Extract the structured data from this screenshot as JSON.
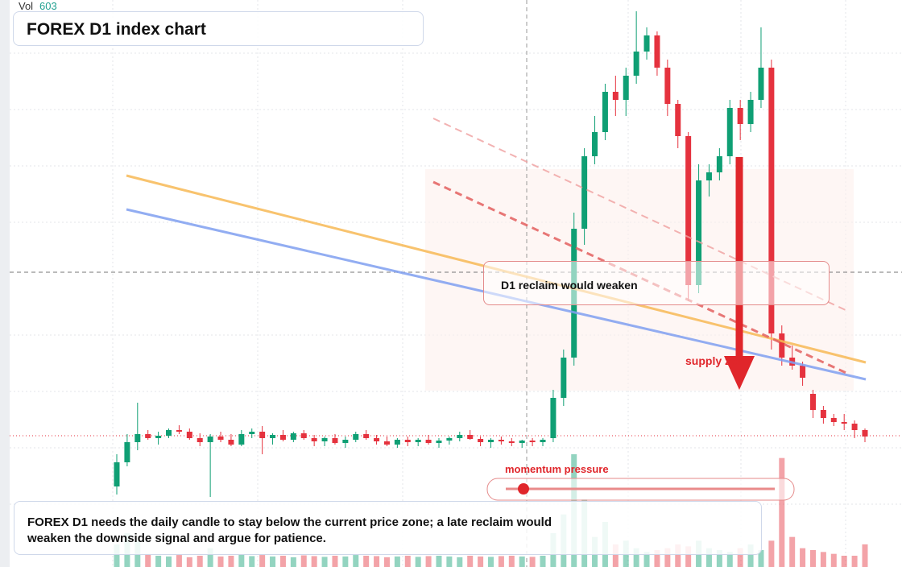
{
  "chart_data": {
    "type": "candlestick",
    "title": "FOREX D1 index chart",
    "volume_label": "Vol",
    "volume_last": "603",
    "zone_label": "D1 reclaim would weaken",
    "supply_label": "supply zone",
    "momentum_label": "momentum pressure",
    "note": "FOREX D1 needs the daily candle to stay below the current price zone; a late reclaim would weaken the downside signal and argue for patience.",
    "up_color": "#0f9f74",
    "down_color": "#e5323e",
    "ylim": [
      0,
      704
    ],
    "volume_ylim": [
      0,
      3000
    ],
    "candles": [
      [
        100,
        140,
        90,
        130
      ],
      [
        130,
        165,
        125,
        155
      ],
      [
        155,
        204,
        145,
        165
      ],
      [
        165,
        170,
        158,
        160
      ],
      [
        160,
        168,
        152,
        163
      ],
      [
        163,
        172,
        160,
        170
      ],
      [
        170,
        176,
        165,
        168
      ],
      [
        168,
        172,
        158,
        160
      ],
      [
        160,
        166,
        150,
        155
      ],
      [
        155,
        165,
        87,
        162
      ],
      [
        162,
        168,
        155,
        158
      ],
      [
        158,
        165,
        150,
        152
      ],
      [
        152,
        170,
        150,
        165
      ],
      [
        165,
        172,
        160,
        168
      ],
      [
        168,
        175,
        140,
        160
      ],
      [
        160,
        166,
        152,
        164
      ],
      [
        164,
        170,
        156,
        158
      ],
      [
        158,
        168,
        155,
        166
      ],
      [
        166,
        170,
        158,
        160
      ],
      [
        160,
        164,
        150,
        156
      ],
      [
        156,
        162,
        150,
        160
      ],
      [
        160,
        165,
        152,
        154
      ],
      [
        154,
        162,
        148,
        158
      ],
      [
        158,
        168,
        155,
        165
      ],
      [
        165,
        170,
        158,
        160
      ],
      [
        160,
        164,
        152,
        156
      ],
      [
        156,
        162,
        150,
        152
      ],
      [
        152,
        160,
        148,
        158
      ],
      [
        158,
        162,
        150,
        155
      ],
      [
        155,
        160,
        150,
        158
      ],
      [
        158,
        164,
        152,
        154
      ],
      [
        154,
        160,
        148,
        157
      ],
      [
        157,
        162,
        152,
        160
      ],
      [
        160,
        168,
        156,
        164
      ],
      [
        164,
        170,
        158,
        159
      ],
      [
        159,
        162,
        150,
        155
      ],
      [
        155,
        160,
        148,
        158
      ],
      [
        158,
        162,
        152,
        156
      ],
      [
        156,
        160,
        150,
        154
      ],
      [
        154,
        158,
        148,
        157
      ],
      [
        157,
        160,
        150,
        155
      ],
      [
        155,
        160,
        150,
        158
      ],
      [
        160,
        220,
        155,
        210
      ],
      [
        210,
        270,
        200,
        260
      ],
      [
        260,
        440,
        250,
        420
      ],
      [
        420,
        520,
        400,
        510
      ],
      [
        510,
        560,
        500,
        540
      ],
      [
        540,
        600,
        530,
        590
      ],
      [
        590,
        610,
        560,
        580
      ],
      [
        580,
        620,
        560,
        610
      ],
      [
        610,
        690,
        600,
        640
      ],
      [
        640,
        670,
        630,
        660
      ],
      [
        660,
        665,
        610,
        620
      ],
      [
        620,
        630,
        560,
        575
      ],
      [
        575,
        580,
        520,
        535
      ],
      [
        535,
        540,
        330,
        350
      ],
      [
        350,
        500,
        340,
        480
      ],
      [
        480,
        500,
        460,
        490
      ],
      [
        490,
        520,
        480,
        510
      ],
      [
        510,
        580,
        500,
        570
      ],
      [
        570,
        580,
        530,
        550
      ],
      [
        550,
        590,
        540,
        580
      ],
      [
        580,
        670,
        570,
        620
      ],
      [
        620,
        630,
        270,
        290
      ],
      [
        290,
        300,
        250,
        260
      ],
      [
        260,
        275,
        245,
        250
      ],
      [
        250,
        255,
        225,
        235
      ],
      [
        215,
        220,
        185,
        195
      ],
      [
        195,
        200,
        178,
        185
      ],
      [
        185,
        190,
        175,
        180
      ],
      [
        180,
        190,
        170,
        178
      ],
      [
        178,
        182,
        160,
        170
      ],
      [
        170,
        172,
        155,
        162
      ]
    ],
    "volumes": [
      600,
      900,
      700,
      350,
      300,
      280,
      320,
      260,
      300,
      500,
      280,
      300,
      330,
      290,
      320,
      280,
      300,
      260,
      310,
      290,
      270,
      300,
      280,
      320,
      300,
      290,
      260,
      280,
      300,
      270,
      290,
      300,
      280,
      260,
      300,
      280,
      270,
      290,
      300,
      280,
      270,
      300,
      900,
      1400,
      3000,
      1800,
      800,
      1200,
      600,
      700,
      500,
      400,
      450,
      500,
      600,
      550,
      700,
      500,
      450,
      400,
      500,
      600,
      450,
      700,
      2900,
      800,
      500,
      450,
      400,
      350,
      300,
      300,
      603
    ]
  }
}
